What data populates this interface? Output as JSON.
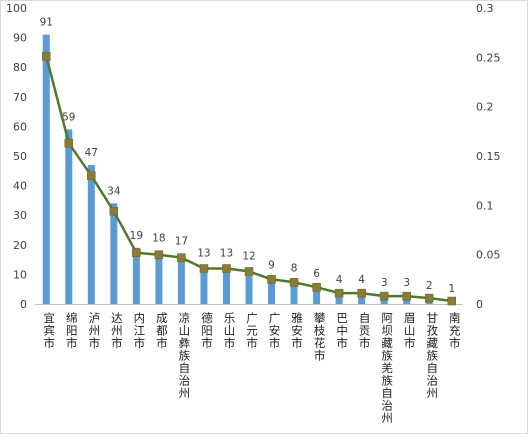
{
  "chart_data": {
    "type": "bar",
    "categories": [
      "宜宾市",
      "绵阳市",
      "泸州市",
      "达州市",
      "内江市",
      "成都市",
      "凉山彝族自治州",
      "德阳市",
      "乐山市",
      "广元市",
      "广安市",
      "雅安市",
      "攀枝花市",
      "巴中市",
      "自贡市",
      "阿坝藏族羌族自治州",
      "眉山市",
      "甘孜藏族自治州",
      "南充市"
    ],
    "series": [
      {
        "type": "bar",
        "axis": "left",
        "values": [
          91,
          59,
          47,
          34,
          19,
          18,
          17,
          13,
          13,
          12,
          9,
          8,
          6,
          4,
          4,
          3,
          3,
          2,
          1
        ],
        "data_labels": [
          "91",
          "59",
          "47",
          "34",
          "19",
          "18",
          "17",
          "13",
          "13",
          "12",
          "9",
          "8",
          "6",
          "4",
          "4",
          "3",
          "3",
          "2",
          "1"
        ]
      },
      {
        "type": "line",
        "axis": "right",
        "values": [
          0.251,
          0.163,
          0.13,
          0.094,
          0.052,
          0.05,
          0.047,
          0.036,
          0.036,
          0.033,
          0.025,
          0.022,
          0.017,
          0.011,
          0.011,
          0.008,
          0.008,
          0.006,
          0.003
        ]
      }
    ],
    "y_left": {
      "min": 0,
      "max": 100,
      "ticks": [
        "0",
        "10",
        "20",
        "30",
        "40",
        "50",
        "60",
        "70",
        "80",
        "90",
        "100"
      ]
    },
    "y_right": {
      "min": 0,
      "max": 0.3,
      "ticks": [
        "0",
        "0.05",
        "0.1",
        "0.15",
        "0.2",
        "0.25",
        "0.3"
      ]
    },
    "grid": false,
    "legend": "none",
    "title": "",
    "colors": {
      "bar": "#5b9bd5",
      "line": "#4e7a2e",
      "marker": "#8c7b35",
      "axis": "#bfbfbf"
    }
  }
}
